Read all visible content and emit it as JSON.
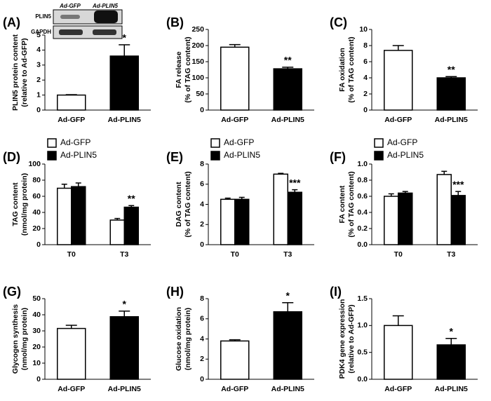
{
  "chart_data": [
    {
      "type": "bar",
      "panel": "(A)",
      "ylabel": [
        "PLIN5 protein content",
        "(relative to Ad-GFP)"
      ],
      "categories": [
        "Ad-GFP",
        "Ad-PLIN5"
      ],
      "values": [
        1.0,
        3.6
      ],
      "errors": [
        0.03,
        0.75
      ],
      "colors": [
        "#ffffff",
        "#000000"
      ],
      "significance": [
        null,
        "*"
      ],
      "ylim": [
        0,
        5
      ],
      "yticks": [
        0,
        1,
        2,
        3,
        4,
        5
      ],
      "inset": {
        "lanes": [
          "Ad-GFP",
          "Ad-PLIN5"
        ],
        "rows": [
          "PLIN5",
          "GAPDH"
        ]
      }
    },
    {
      "type": "bar",
      "panel": "(B)",
      "ylabel": [
        "FA release",
        "(% of TAG content)"
      ],
      "categories": [
        "Ad-GFP",
        "Ad-PLIN5"
      ],
      "values": [
        195,
        128
      ],
      "errors": [
        8,
        5
      ],
      "colors": [
        "#ffffff",
        "#000000"
      ],
      "significance": [
        null,
        "**"
      ],
      "ylim": [
        0,
        250
      ],
      "yticks": [
        0,
        50,
        100,
        150,
        200,
        250
      ]
    },
    {
      "type": "bar",
      "panel": "(C)",
      "ylabel": [
        "FA oxidation",
        "(% of TAG content)"
      ],
      "categories": [
        "Ad-GFP",
        "Ad-PLIN5"
      ],
      "values": [
        7.4,
        4.0
      ],
      "errors": [
        0.6,
        0.15
      ],
      "colors": [
        "#ffffff",
        "#000000"
      ],
      "significance": [
        null,
        "**"
      ],
      "ylim": [
        0,
        10
      ],
      "yticks": [
        0,
        2,
        4,
        6,
        8,
        10
      ]
    },
    {
      "type": "grouped_bar",
      "panel": "(D)",
      "ylabel": [
        "TAG content",
        "(nmol/mg protein)"
      ],
      "categories": [
        "T0",
        "T3"
      ],
      "legend": "top-left",
      "series": [
        {
          "name": "Ad-GFP",
          "color": "#ffffff",
          "values": [
            70,
            30.5
          ],
          "errors": [
            5,
            2
          ],
          "significance": [
            null,
            null
          ]
        },
        {
          "name": "Ad-PLIN5",
          "color": "#000000",
          "values": [
            72,
            46.5
          ],
          "errors": [
            4.5,
            2
          ],
          "significance": [
            null,
            "**"
          ]
        }
      ],
      "ylim": [
        0,
        100
      ],
      "yticks": [
        0,
        20,
        40,
        60,
        80,
        100
      ]
    },
    {
      "type": "grouped_bar",
      "panel": "(E)",
      "ylabel": [
        "DAG content",
        "(% of TAG content)"
      ],
      "categories": [
        "T0",
        "T3"
      ],
      "legend": "top-left",
      "series": [
        {
          "name": "Ad-GFP",
          "color": "#ffffff",
          "values": [
            4.5,
            7.0
          ],
          "errors": [
            0.12,
            0.08
          ],
          "significance": [
            null,
            null
          ]
        },
        {
          "name": "Ad-PLIN5",
          "color": "#000000",
          "values": [
            4.5,
            5.2
          ],
          "errors": [
            0.2,
            0.25
          ],
          "significance": [
            null,
            "***"
          ]
        }
      ],
      "ylim": [
        0,
        8
      ],
      "yticks": [
        0,
        2,
        4,
        6,
        8
      ]
    },
    {
      "type": "grouped_bar",
      "panel": "(F)",
      "ylabel": [
        "FA content",
        "(% of TAG content)"
      ],
      "categories": [
        "T0",
        "T3"
      ],
      "legend": "top-left",
      "series": [
        {
          "name": "Ad-GFP",
          "color": "#ffffff",
          "values": [
            0.6,
            0.87
          ],
          "errors": [
            0.03,
            0.04
          ],
          "significance": [
            null,
            null
          ]
        },
        {
          "name": "Ad-PLIN5",
          "color": "#000000",
          "values": [
            0.64,
            0.61
          ],
          "errors": [
            0.02,
            0.05
          ],
          "significance": [
            null,
            "***"
          ]
        }
      ],
      "ylim": [
        0,
        1.0
      ],
      "yticks": [
        {
          "value": 0,
          "label": "0.0"
        },
        0.2,
        0.4,
        0.6,
        0.8,
        {
          "value": 1.0,
          "label": "1.0"
        }
      ]
    },
    {
      "type": "bar",
      "panel": "(G)",
      "ylabel": [
        "Glycogen synthesis",
        "(nmol/mg protein)"
      ],
      "categories": [
        "Ad-GFP",
        "Ad-PLIN5"
      ],
      "values": [
        31.5,
        38.8
      ],
      "errors": [
        2,
        3.5
      ],
      "colors": [
        "#ffffff",
        "#000000"
      ],
      "significance": [
        null,
        "*"
      ],
      "ylim": [
        0,
        50
      ],
      "yticks": [
        0,
        10,
        20,
        30,
        40,
        50
      ]
    },
    {
      "type": "bar",
      "panel": "(H)",
      "ylabel": [
        "Glucose oxidation",
        "(nmol/mg protein)"
      ],
      "categories": [
        "Ad-GFP",
        "Ad-PLIN5"
      ],
      "values": [
        3.8,
        6.7
      ],
      "errors": [
        0.12,
        0.9
      ],
      "colors": [
        "#ffffff",
        "#000000"
      ],
      "significance": [
        null,
        "*"
      ],
      "ylim": [
        0,
        8
      ],
      "yticks": [
        0,
        2,
        4,
        6,
        8
      ]
    },
    {
      "type": "bar",
      "panel": "(I)",
      "ylabel": [
        "PDK4 gene expression",
        "(relative to Ad-GFP)"
      ],
      "categories": [
        "Ad-GFP",
        "Ad-PLIN5"
      ],
      "values": [
        1.0,
        0.64
      ],
      "errors": [
        0.18,
        0.12
      ],
      "colors": [
        "#ffffff",
        "#000000"
      ],
      "significance": [
        null,
        "*"
      ],
      "ylim": [
        0,
        1.5
      ],
      "yticks": [
        {
          "value": 0,
          "label": "0.0"
        },
        0.5,
        {
          "value": 1.0,
          "label": "1.0"
        },
        1.5
      ]
    }
  ]
}
